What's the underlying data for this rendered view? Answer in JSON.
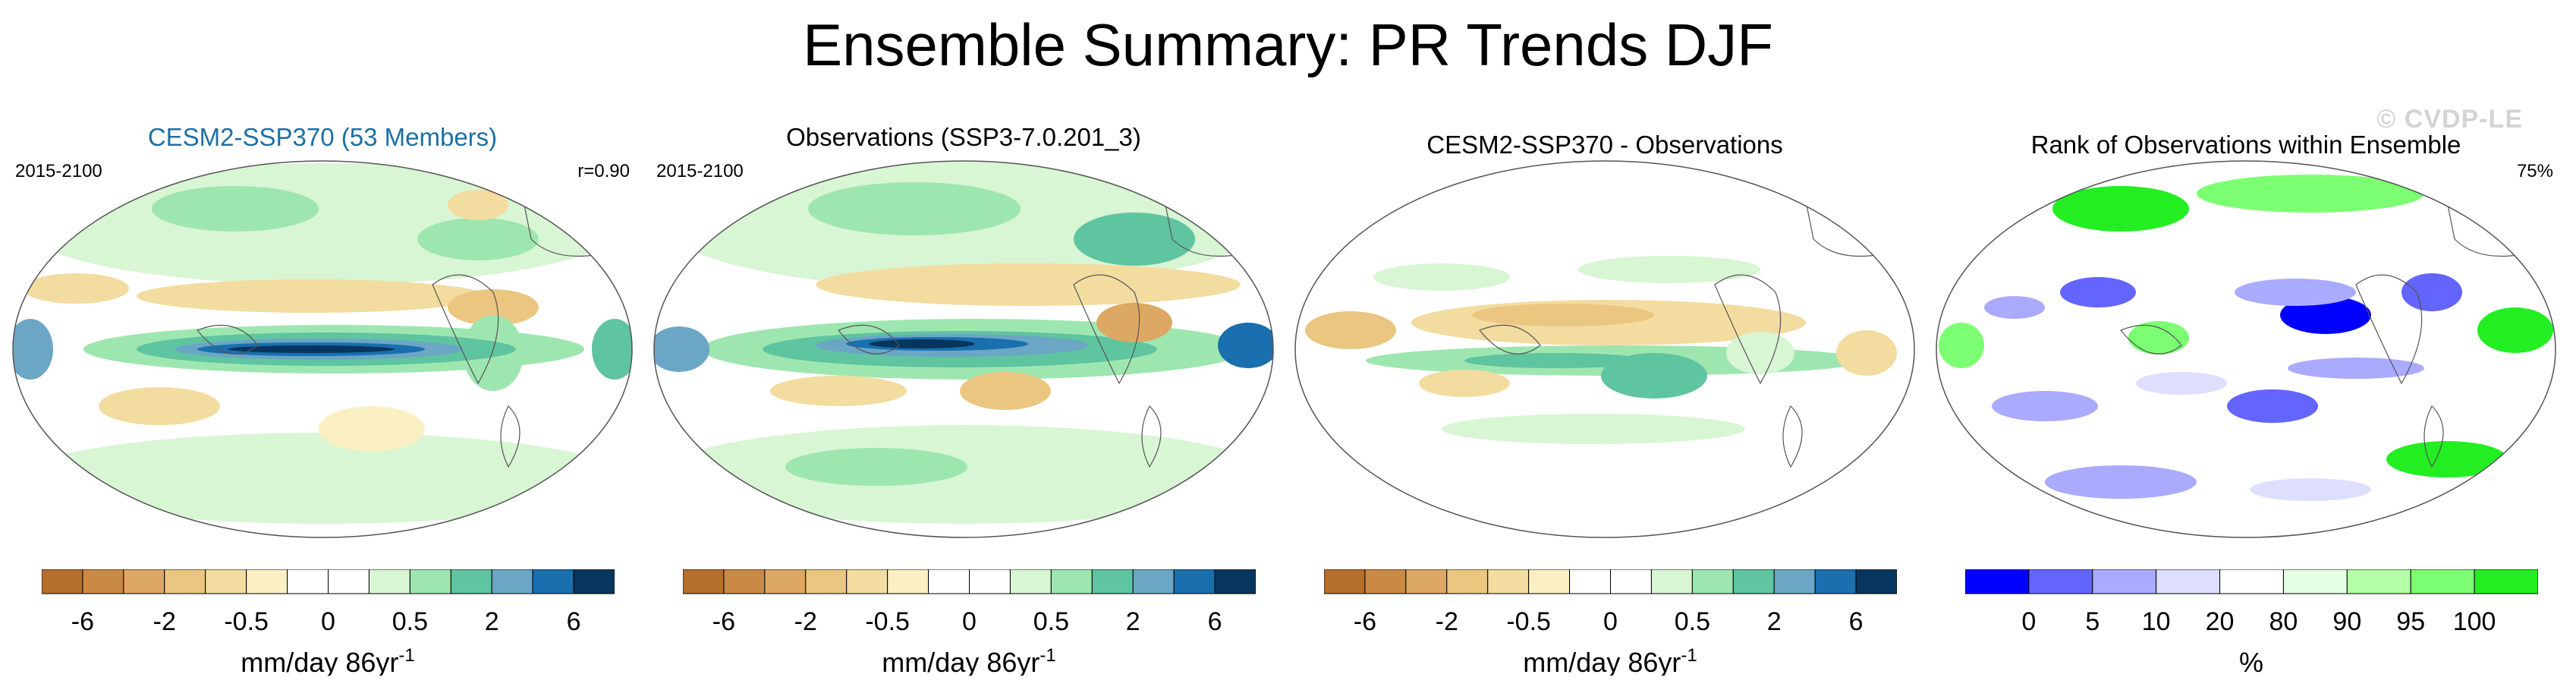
{
  "title": "Ensemble Summary: PR Trends DJF",
  "watermark": "© CVDP-LE",
  "colors": {
    "diverging": [
      "#b56e2c",
      "#c98a46",
      "#dda764",
      "#ebc681",
      "#f3dca0",
      "#fbf0c3",
      "#ffffff",
      "#ffffff",
      "#d8f5d4",
      "#9ee6b0",
      "#5fc4a0",
      "#6ba6c5",
      "#1a6fae",
      "#06365e"
    ],
    "rank": [
      "#0000ff",
      "#6464ff",
      "#aaaaff",
      "#dedeff",
      "#ffffff",
      "#e5ffe2",
      "#b4ffa8",
      "#7cff72",
      "#22ee22"
    ],
    "title_blue": "#1d6fa5"
  },
  "panels": [
    {
      "title": "CESM2-SSP370 (53 Members)",
      "left": "2015-2100",
      "right": "r=0.90"
    },
    {
      "title": "Observations (SSP3-7.0.201_3)",
      "left": "2015-2100",
      "right": ""
    },
    {
      "title": "CESM2-SSP370 - Observations",
      "left": "",
      "right": ""
    },
    {
      "title": "Rank of Observations within Ensemble",
      "left": "",
      "right": "75%"
    }
  ],
  "colorbar_main": {
    "ticks": [
      "-6",
      "-2",
      "-0.5",
      "0",
      "0.5",
      "2",
      "6"
    ],
    "units_base": "mm/day 86yr",
    "units_sup": "-1"
  },
  "colorbar_rank": {
    "ticks": [
      "0",
      "5",
      "10",
      "20",
      "80",
      "90",
      "95",
      "100"
    ],
    "units": "%"
  },
  "chart_data": [
    {
      "type": "heatmap",
      "title": "CESM2-SSP370 (53 Members)",
      "period": "2015-2100",
      "annotation": "r=0.90",
      "levels": [
        -6,
        -4,
        -2,
        -1,
        -0.5,
        -0.2,
        0,
        0.2,
        0.5,
        1,
        2,
        4,
        6
      ],
      "units": "mm/day 86yr-1"
    },
    {
      "type": "heatmap",
      "title": "Observations (SSP3-7.0.201_3)",
      "period": "2015-2100",
      "levels": [
        -6,
        -4,
        -2,
        -1,
        -0.5,
        -0.2,
        0,
        0.2,
        0.5,
        1,
        2,
        4,
        6
      ],
      "units": "mm/day 86yr-1"
    },
    {
      "type": "heatmap",
      "title": "CESM2-SSP370 - Observations",
      "levels": [
        -6,
        -4,
        -2,
        -1,
        -0.5,
        -0.2,
        0,
        0.2,
        0.5,
        1,
        2,
        4,
        6
      ],
      "units": "mm/day 86yr-1"
    },
    {
      "type": "heatmap",
      "title": "Rank of Observations within Ensemble",
      "annotation": "75%",
      "levels": [
        0,
        5,
        10,
        20,
        80,
        90,
        95,
        100
      ],
      "units": "%"
    }
  ]
}
